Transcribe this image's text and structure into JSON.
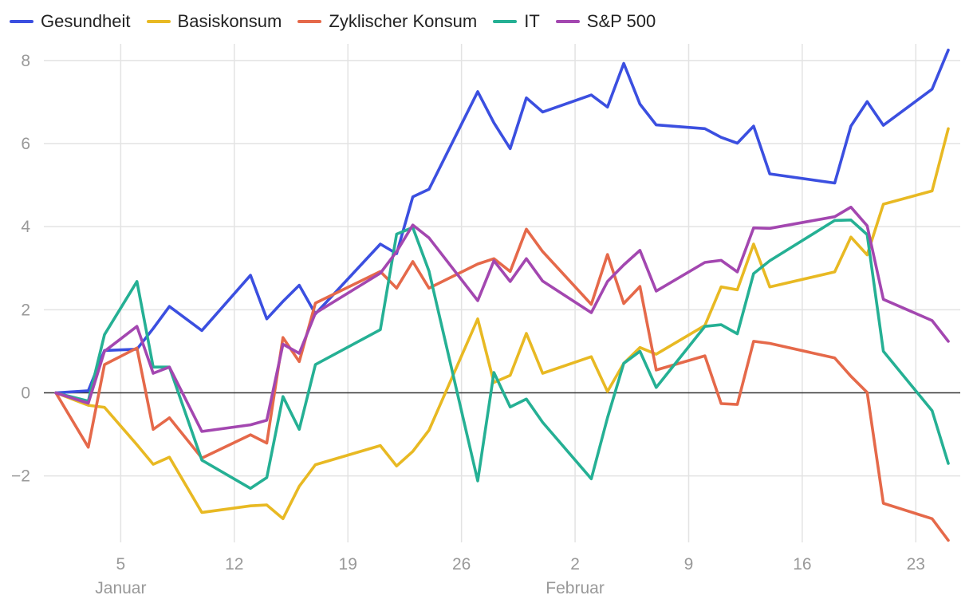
{
  "chart_data": {
    "type": "line",
    "title": "",
    "xlabel": "",
    "ylabel": "",
    "x_axis": {
      "type": "date",
      "range": [
        "2025-01-01",
        "2025-02-25"
      ],
      "ticks": [
        {
          "date": "2025-01-05",
          "label": "5"
        },
        {
          "date": "2025-01-12",
          "label": "12"
        },
        {
          "date": "2025-01-19",
          "label": "19"
        },
        {
          "date": "2025-01-26",
          "label": "26"
        },
        {
          "date": "2025-02-02",
          "label": "2"
        },
        {
          "date": "2025-02-09",
          "label": "9"
        },
        {
          "date": "2025-02-16",
          "label": "16"
        },
        {
          "date": "2025-02-23",
          "label": "23"
        }
      ],
      "months": [
        {
          "date": "2025-01-05",
          "label": "Januar"
        },
        {
          "date": "2025-02-02",
          "label": "Februar"
        }
      ]
    },
    "y_axis": {
      "range": [
        -3.6,
        8.4
      ],
      "ticks": [
        {
          "value": -2,
          "label": "−2"
        },
        {
          "value": 0,
          "label": "0"
        },
        {
          "value": 2,
          "label": "2"
        },
        {
          "value": 4,
          "label": "4"
        },
        {
          "value": 6,
          "label": "6"
        },
        {
          "value": 8,
          "label": "8"
        }
      ],
      "zero_line": true
    },
    "grid": true,
    "legend_position": "top-left",
    "x": [
      "2025-01-01",
      "2025-01-03",
      "2025-01-04",
      "2025-01-06",
      "2025-01-07",
      "2025-01-08",
      "2025-01-10",
      "2025-01-13",
      "2025-01-14",
      "2025-01-15",
      "2025-01-16",
      "2025-01-17",
      "2025-01-21",
      "2025-01-22",
      "2025-01-23",
      "2025-01-24",
      "2025-01-27",
      "2025-01-28",
      "2025-01-29",
      "2025-01-30",
      "2025-01-31",
      "2025-02-03",
      "2025-02-04",
      "2025-02-05",
      "2025-02-06",
      "2025-02-07",
      "2025-02-10",
      "2025-02-11",
      "2025-02-12",
      "2025-02-13",
      "2025-02-14",
      "2025-02-18",
      "2025-02-19",
      "2025-02-20",
      "2025-02-21",
      "2025-02-24",
      "2025-02-25"
    ],
    "series": [
      {
        "name": "Gesundheit",
        "color": "#3b4fe0",
        "values": [
          0,
          0.05,
          1.02,
          1.05,
          1.55,
          2.08,
          1.5,
          2.83,
          1.78,
          2.2,
          2.59,
          1.9,
          3.58,
          3.35,
          4.72,
          4.9,
          7.25,
          6.5,
          5.88,
          7.1,
          6.76,
          7.17,
          6.88,
          7.93,
          6.95,
          6.45,
          6.36,
          6.15,
          6.01,
          6.42,
          5.27,
          5.05,
          6.42,
          7.01,
          6.44,
          7.31,
          8.25
        ]
      },
      {
        "name": "Basiskonsum",
        "color": "#e8b923",
        "values": [
          0,
          -0.3,
          -0.35,
          -1.25,
          -1.72,
          -1.55,
          -2.88,
          -2.72,
          -2.7,
          -3.03,
          -2.25,
          -1.73,
          -1.27,
          -1.76,
          -1.41,
          -0.9,
          1.78,
          0.25,
          0.42,
          1.43,
          0.47,
          0.87,
          0.03,
          0.71,
          1.09,
          0.93,
          1.62,
          2.55,
          2.48,
          3.58,
          2.55,
          2.91,
          3.75,
          3.32,
          4.54,
          4.86,
          6.36
        ]
      },
      {
        "name": "Zyklischer Konsum",
        "color": "#e5694a",
        "values": [
          0,
          -1.31,
          0.68,
          1.08,
          -0.88,
          -0.6,
          -1.57,
          -1.01,
          -1.21,
          1.33,
          0.75,
          2.16,
          2.92,
          2.52,
          3.16,
          2.52,
          3.1,
          3.23,
          2.92,
          3.94,
          3.4,
          2.13,
          3.33,
          2.15,
          2.56,
          0.55,
          0.89,
          -0.26,
          -0.28,
          1.24,
          1.19,
          0.84,
          0.4,
          0.01,
          -2.66,
          -3.03,
          -3.55
        ]
      },
      {
        "name": "IT",
        "color": "#25b094",
        "values": [
          0,
          -0.2,
          1.4,
          2.68,
          0.62,
          0.62,
          -1.62,
          -2.3,
          -2.04,
          -0.09,
          -0.88,
          0.68,
          1.52,
          3.82,
          3.98,
          2.93,
          -2.12,
          0.49,
          -0.34,
          -0.15,
          -0.71,
          -2.07,
          -0.6,
          0.71,
          1.0,
          0.13,
          1.6,
          1.64,
          1.42,
          2.87,
          3.18,
          4.15,
          4.16,
          3.81,
          1.0,
          -0.43,
          -1.7
        ]
      },
      {
        "name": "S&P 500",
        "color": "#a347b0",
        "values": [
          0,
          -0.25,
          1.0,
          1.6,
          0.47,
          0.62,
          -0.93,
          -0.77,
          -0.66,
          1.17,
          0.95,
          1.92,
          2.88,
          3.4,
          4.04,
          3.73,
          2.22,
          3.18,
          2.68,
          3.23,
          2.69,
          1.93,
          2.68,
          3.08,
          3.43,
          2.45,
          3.14,
          3.19,
          2.91,
          3.97,
          3.96,
          4.24,
          4.47,
          4.02,
          2.25,
          1.74,
          1.24
        ]
      }
    ]
  }
}
